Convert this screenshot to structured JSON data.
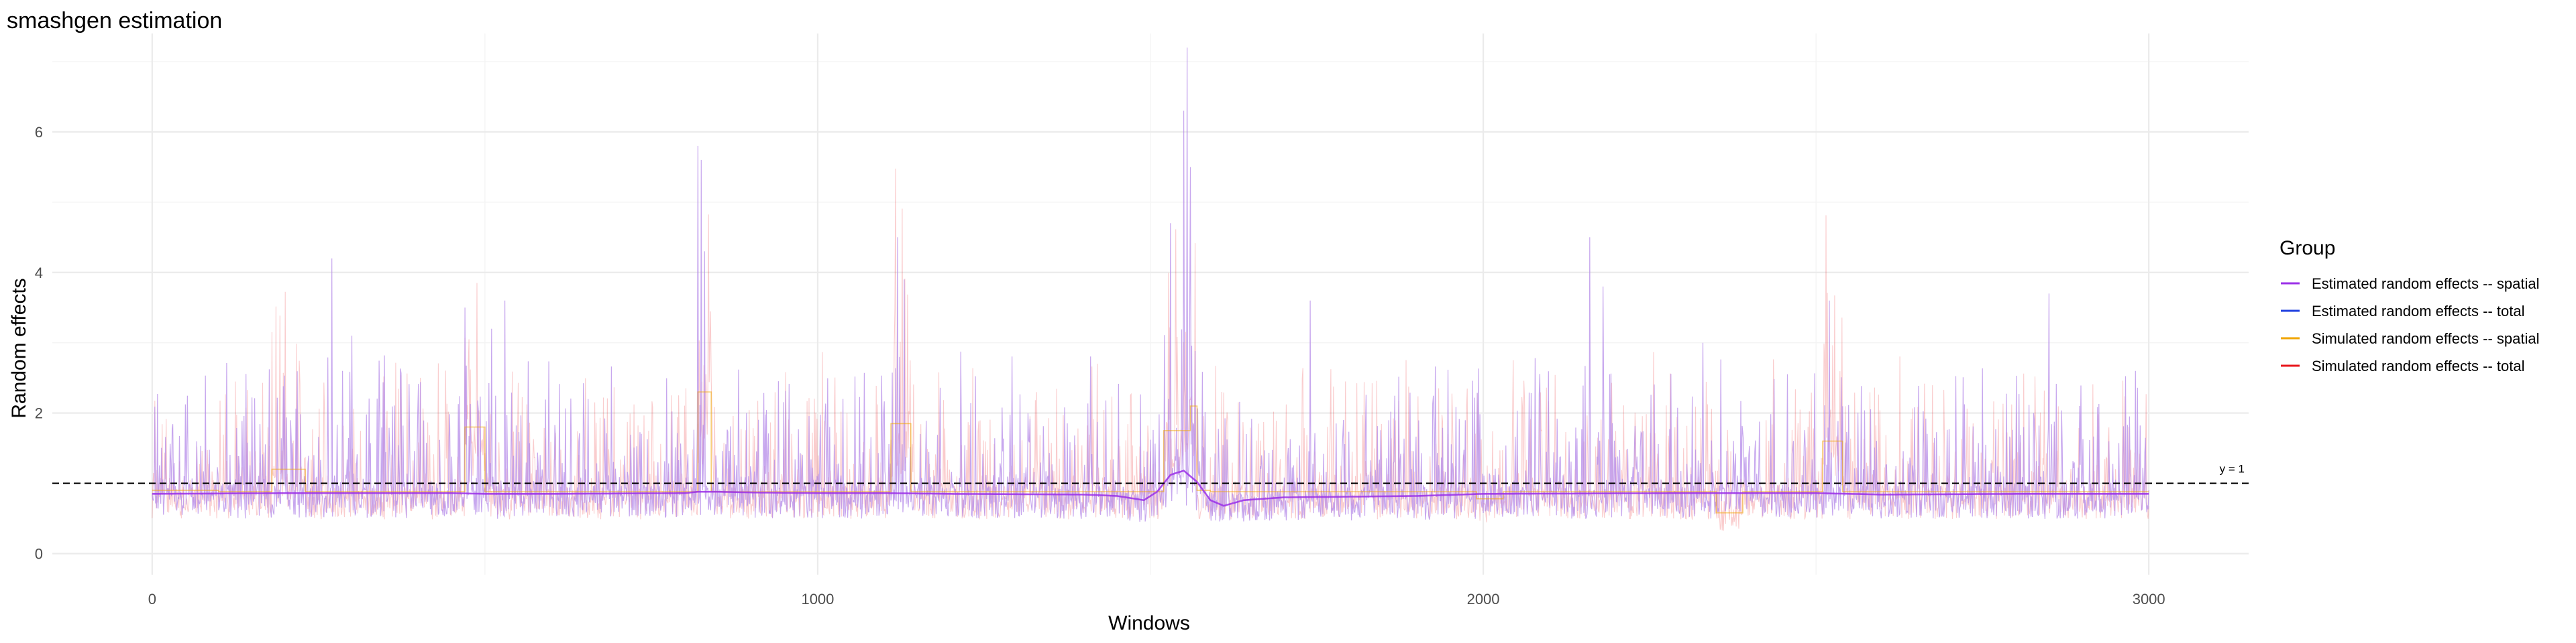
{
  "chart_data": {
    "type": "line",
    "title": "smashgen estimation",
    "xlabel": "Windows",
    "ylabel": "Random effects",
    "xlim": [
      -150,
      3150
    ],
    "ylim": [
      -0.3,
      7.4
    ],
    "x_ticks": [
      0,
      1000,
      2000,
      3000
    ],
    "x_minor_ticks": [
      500,
      1500,
      2500
    ],
    "y_ticks": [
      0,
      2,
      4,
      6
    ],
    "y_minor_ticks": [
      1,
      3,
      5,
      7
    ],
    "n_windows": 3000,
    "grid": true,
    "legend": {
      "title": "Group",
      "position": "right",
      "entries": [
        {
          "label": "Estimated random effects -- spatial",
          "color": "#9b30e8"
        },
        {
          "label": "Estimated random effects -- total",
          "color": "#1f3fe0"
        },
        {
          "label": "Simulated random effects -- spatial",
          "color": "#f0a500"
        },
        {
          "label": "Simulated random effects -- total",
          "color": "#e8151b"
        }
      ]
    },
    "reference_line": {
      "y": 1,
      "label": "y = 1",
      "style": "dashed",
      "color": "#000000"
    },
    "series": [
      {
        "name": "Estimated random effects -- spatial",
        "color": "#9b30e8",
        "knots": [
          [
            0,
            0.85
          ],
          [
            200,
            0.86
          ],
          [
            450,
            0.86
          ],
          [
            500,
            0.85
          ],
          [
            600,
            0.85
          ],
          [
            800,
            0.86
          ],
          [
            820,
            0.88
          ],
          [
            850,
            0.88
          ],
          [
            900,
            0.87
          ],
          [
            1000,
            0.86
          ],
          [
            1100,
            0.86
          ],
          [
            1200,
            0.85
          ],
          [
            1400,
            0.84
          ],
          [
            1450,
            0.82
          ],
          [
            1490,
            0.76
          ],
          [
            1510,
            0.88
          ],
          [
            1530,
            1.12
          ],
          [
            1550,
            1.18
          ],
          [
            1570,
            1.02
          ],
          [
            1590,
            0.76
          ],
          [
            1610,
            0.68
          ],
          [
            1640,
            0.76
          ],
          [
            1700,
            0.8
          ],
          [
            1800,
            0.81
          ],
          [
            1900,
            0.82
          ],
          [
            2000,
            0.85
          ],
          [
            2300,
            0.86
          ],
          [
            2500,
            0.86
          ],
          [
            2600,
            0.84
          ],
          [
            2800,
            0.85
          ],
          [
            3000,
            0.85
          ]
        ]
      },
      {
        "name": "Simulated random effects -- spatial",
        "color": "#f0a500",
        "steps": [
          [
            0,
            100,
            0.9
          ],
          [
            100,
            180,
            0.88
          ],
          [
            180,
            230,
            1.2
          ],
          [
            230,
            470,
            0.88
          ],
          [
            470,
            500,
            1.8
          ],
          [
            500,
            820,
            0.88
          ],
          [
            820,
            840,
            2.3
          ],
          [
            840,
            1110,
            0.88
          ],
          [
            1110,
            1140,
            1.85
          ],
          [
            1140,
            1520,
            0.88
          ],
          [
            1520,
            1560,
            1.75
          ],
          [
            1560,
            1570,
            2.1
          ],
          [
            1570,
            1590,
            0.9
          ],
          [
            1590,
            1990,
            0.88
          ],
          [
            1990,
            2030,
            0.78
          ],
          [
            2030,
            2350,
            0.88
          ],
          [
            2350,
            2390,
            0.58
          ],
          [
            2390,
            2510,
            0.88
          ],
          [
            2510,
            2540,
            1.6
          ],
          [
            2540,
            3000,
            0.88
          ]
        ]
      }
    ],
    "peaks": [
      [
        270,
        4.2
      ],
      [
        300,
        3.1
      ],
      [
        470,
        3.5
      ],
      [
        510,
        3.2
      ],
      [
        530,
        3.6
      ],
      [
        820,
        5.8
      ],
      [
        825,
        5.6
      ],
      [
        830,
        4.3
      ],
      [
        1130,
        3.9
      ],
      [
        1120,
        4.5
      ],
      [
        1530,
        4.7
      ],
      [
        1550,
        6.3
      ],
      [
        1555,
        7.2
      ],
      [
        1560,
        5.5
      ],
      [
        1740,
        3.6
      ],
      [
        2180,
        3.8
      ],
      [
        2160,
        4.5
      ],
      [
        2330,
        3.0
      ],
      [
        2520,
        3.6
      ],
      [
        2850,
        3.7
      ],
      [
        2980,
        2.6
      ]
    ]
  }
}
